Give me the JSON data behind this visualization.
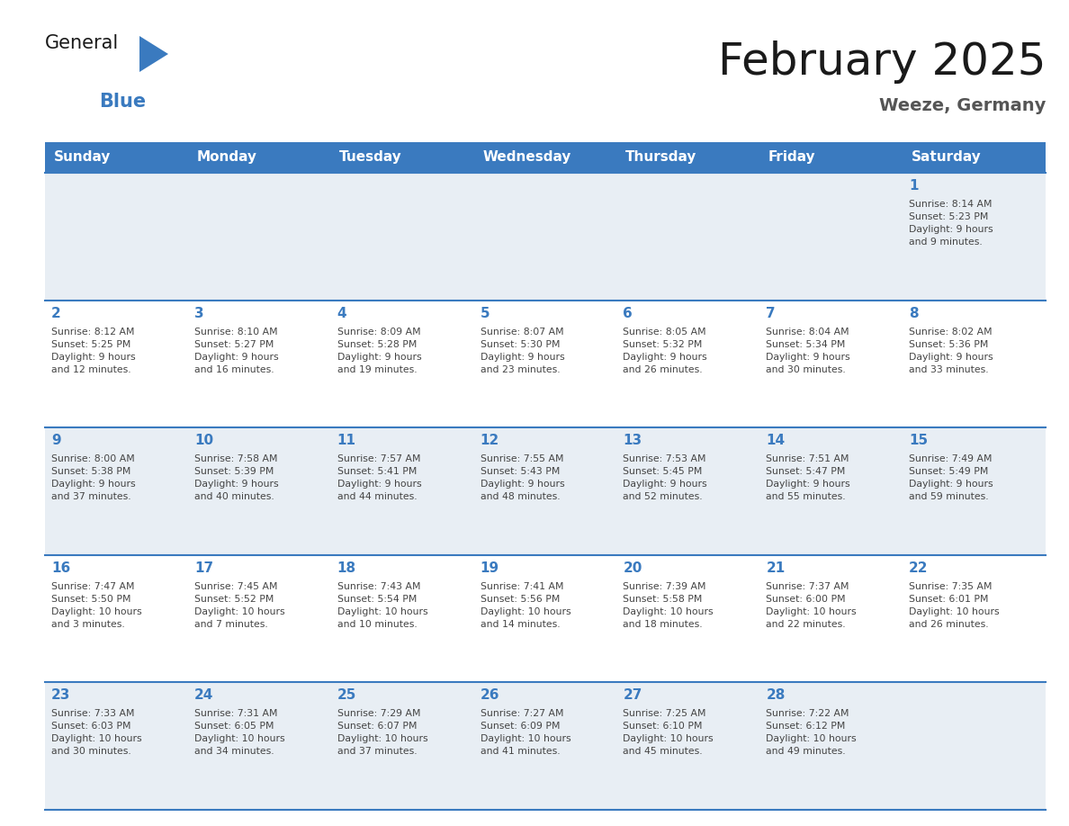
{
  "title": "February 2025",
  "subtitle": "Weeze, Germany",
  "days_of_week": [
    "Sunday",
    "Monday",
    "Tuesday",
    "Wednesday",
    "Thursday",
    "Friday",
    "Saturday"
  ],
  "header_bg_color": "#3a7abf",
  "header_text_color": "#ffffff",
  "cell_bg_color_light": "#e8eef4",
  "cell_bg_color_white": "#ffffff",
  "day_number_color": "#3a7abf",
  "info_text_color": "#444444",
  "border_color": "#3a7abf",
  "title_color": "#1a1a1a",
  "subtitle_color": "#555555",
  "logo_general_color": "#1a1a1a",
  "logo_blue_color": "#3a7abf",
  "calendar_data": [
    [
      {
        "day": null,
        "sunrise": null,
        "sunset": null,
        "daylight": null
      },
      {
        "day": null,
        "sunrise": null,
        "sunset": null,
        "daylight": null
      },
      {
        "day": null,
        "sunrise": null,
        "sunset": null,
        "daylight": null
      },
      {
        "day": null,
        "sunrise": null,
        "sunset": null,
        "daylight": null
      },
      {
        "day": null,
        "sunrise": null,
        "sunset": null,
        "daylight": null
      },
      {
        "day": null,
        "sunrise": null,
        "sunset": null,
        "daylight": null
      },
      {
        "day": 1,
        "sunrise": "8:14 AM",
        "sunset": "5:23 PM",
        "daylight": "9 hours\nand 9 minutes."
      }
    ],
    [
      {
        "day": 2,
        "sunrise": "8:12 AM",
        "sunset": "5:25 PM",
        "daylight": "9 hours\nand 12 minutes."
      },
      {
        "day": 3,
        "sunrise": "8:10 AM",
        "sunset": "5:27 PM",
        "daylight": "9 hours\nand 16 minutes."
      },
      {
        "day": 4,
        "sunrise": "8:09 AM",
        "sunset": "5:28 PM",
        "daylight": "9 hours\nand 19 minutes."
      },
      {
        "day": 5,
        "sunrise": "8:07 AM",
        "sunset": "5:30 PM",
        "daylight": "9 hours\nand 23 minutes."
      },
      {
        "day": 6,
        "sunrise": "8:05 AM",
        "sunset": "5:32 PM",
        "daylight": "9 hours\nand 26 minutes."
      },
      {
        "day": 7,
        "sunrise": "8:04 AM",
        "sunset": "5:34 PM",
        "daylight": "9 hours\nand 30 minutes."
      },
      {
        "day": 8,
        "sunrise": "8:02 AM",
        "sunset": "5:36 PM",
        "daylight": "9 hours\nand 33 minutes."
      }
    ],
    [
      {
        "day": 9,
        "sunrise": "8:00 AM",
        "sunset": "5:38 PM",
        "daylight": "9 hours\nand 37 minutes."
      },
      {
        "day": 10,
        "sunrise": "7:58 AM",
        "sunset": "5:39 PM",
        "daylight": "9 hours\nand 40 minutes."
      },
      {
        "day": 11,
        "sunrise": "7:57 AM",
        "sunset": "5:41 PM",
        "daylight": "9 hours\nand 44 minutes."
      },
      {
        "day": 12,
        "sunrise": "7:55 AM",
        "sunset": "5:43 PM",
        "daylight": "9 hours\nand 48 minutes."
      },
      {
        "day": 13,
        "sunrise": "7:53 AM",
        "sunset": "5:45 PM",
        "daylight": "9 hours\nand 52 minutes."
      },
      {
        "day": 14,
        "sunrise": "7:51 AM",
        "sunset": "5:47 PM",
        "daylight": "9 hours\nand 55 minutes."
      },
      {
        "day": 15,
        "sunrise": "7:49 AM",
        "sunset": "5:49 PM",
        "daylight": "9 hours\nand 59 minutes."
      }
    ],
    [
      {
        "day": 16,
        "sunrise": "7:47 AM",
        "sunset": "5:50 PM",
        "daylight": "10 hours\nand 3 minutes."
      },
      {
        "day": 17,
        "sunrise": "7:45 AM",
        "sunset": "5:52 PM",
        "daylight": "10 hours\nand 7 minutes."
      },
      {
        "day": 18,
        "sunrise": "7:43 AM",
        "sunset": "5:54 PM",
        "daylight": "10 hours\nand 10 minutes."
      },
      {
        "day": 19,
        "sunrise": "7:41 AM",
        "sunset": "5:56 PM",
        "daylight": "10 hours\nand 14 minutes."
      },
      {
        "day": 20,
        "sunrise": "7:39 AM",
        "sunset": "5:58 PM",
        "daylight": "10 hours\nand 18 minutes."
      },
      {
        "day": 21,
        "sunrise": "7:37 AM",
        "sunset": "6:00 PM",
        "daylight": "10 hours\nand 22 minutes."
      },
      {
        "day": 22,
        "sunrise": "7:35 AM",
        "sunset": "6:01 PM",
        "daylight": "10 hours\nand 26 minutes."
      }
    ],
    [
      {
        "day": 23,
        "sunrise": "7:33 AM",
        "sunset": "6:03 PM",
        "daylight": "10 hours\nand 30 minutes."
      },
      {
        "day": 24,
        "sunrise": "7:31 AM",
        "sunset": "6:05 PM",
        "daylight": "10 hours\nand 34 minutes."
      },
      {
        "day": 25,
        "sunrise": "7:29 AM",
        "sunset": "6:07 PM",
        "daylight": "10 hours\nand 37 minutes."
      },
      {
        "day": 26,
        "sunrise": "7:27 AM",
        "sunset": "6:09 PM",
        "daylight": "10 hours\nand 41 minutes."
      },
      {
        "day": 27,
        "sunrise": "7:25 AM",
        "sunset": "6:10 PM",
        "daylight": "10 hours\nand 45 minutes."
      },
      {
        "day": 28,
        "sunrise": "7:22 AM",
        "sunset": "6:12 PM",
        "daylight": "10 hours\nand 49 minutes."
      },
      {
        "day": null,
        "sunrise": null,
        "sunset": null,
        "daylight": null
      }
    ]
  ]
}
